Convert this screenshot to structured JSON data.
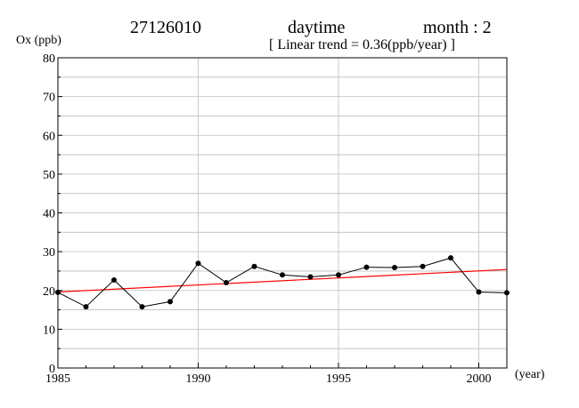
{
  "header": {
    "station": "27126010",
    "period": "daytime",
    "month": "month : 2",
    "trend": "[ Linear trend = 0.36(ppb/year) ]"
  },
  "chart_data": {
    "type": "line",
    "ylabel": "Ox (ppb)",
    "xlabel": "(year)",
    "xlim": [
      1985,
      2001
    ],
    "ylim": [
      0,
      80
    ],
    "x_ticks": [
      1985,
      1990,
      1995,
      2000
    ],
    "y_ticks": [
      0,
      10,
      20,
      30,
      40,
      50,
      60,
      70,
      80
    ],
    "grid": true,
    "series": [
      {
        "color": "#000000",
        "marker": "circle",
        "x": [
          1985,
          1986,
          1987,
          1988,
          1989,
          1990,
          1991,
          1992,
          1993,
          1994,
          1995,
          1996,
          1997,
          1998,
          1999,
          2000,
          2001
        ],
        "values": [
          19.5,
          15.8,
          22.7,
          15.8,
          17.1,
          27.0,
          22.0,
          26.2,
          24.0,
          23.5,
          24.0,
          26.0,
          25.9,
          26.2,
          28.4,
          19.6,
          19.4
        ]
      }
    ],
    "trend_line": {
      "color": "#ff0000",
      "x": [
        1985,
        2001
      ],
      "values": [
        19.6,
        25.4
      ]
    }
  }
}
